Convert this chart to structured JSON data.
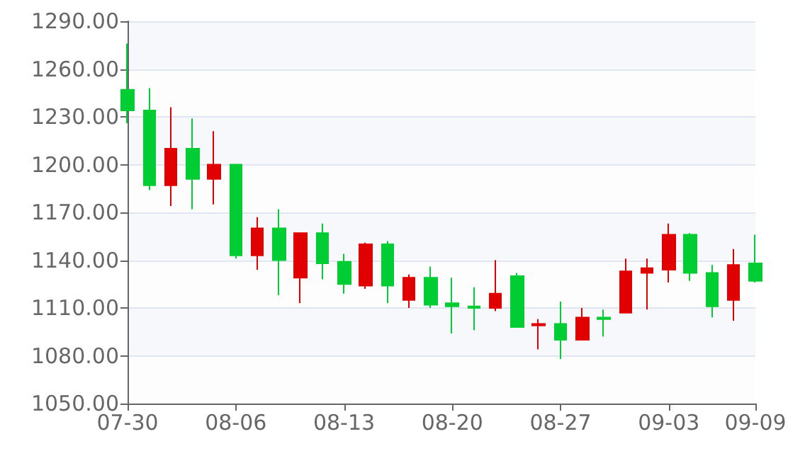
{
  "chart_data": {
    "type": "candlestick",
    "categories": [
      "07-30",
      null,
      null,
      null,
      null,
      "08-06",
      null,
      null,
      null,
      null,
      "08-13",
      null,
      null,
      null,
      null,
      "08-20",
      null,
      null,
      null,
      null,
      "08-27",
      null,
      null,
      null,
      null,
      "09-03",
      null,
      null,
      null,
      "09-09"
    ],
    "ohlc": [
      [
        1247,
        1276,
        1226,
        1234
      ],
      [
        1234,
        1248,
        1184,
        1187
      ],
      [
        1187,
        1236,
        1174,
        1210
      ],
      [
        1210,
        1229,
        1172,
        1191
      ],
      [
        1191,
        1221,
        1175,
        1200
      ],
      [
        1200,
        1200,
        1141,
        1143
      ],
      [
        1143,
        1167,
        1134,
        1160
      ],
      [
        1160,
        1172,
        1118,
        1140
      ],
      [
        1129,
        1157,
        1113,
        1157
      ],
      [
        1157,
        1163,
        1128,
        1138
      ],
      [
        1139,
        1144,
        1119,
        1125
      ],
      [
        1124,
        1151,
        1122,
        1150
      ],
      [
        1150,
        1152,
        1113,
        1124
      ],
      [
        1115,
        1131,
        1110,
        1129
      ],
      [
        1129,
        1136,
        1110,
        1112
      ],
      [
        1113,
        1129,
        1094,
        1111
      ],
      [
        1111,
        1123,
        1096,
        1110
      ],
      [
        1110,
        1140,
        1108,
        1119
      ],
      [
        1130,
        1132,
        1098,
        1098
      ],
      [
        1099,
        1103,
        1084,
        1100
      ],
      [
        1100,
        1114,
        1078,
        1090
      ],
      [
        1090,
        1110,
        1090,
        1104
      ],
      [
        1104,
        1109,
        1092,
        1103
      ],
      [
        1107,
        1141,
        1107,
        1133
      ],
      [
        1132,
        1141,
        1109,
        1135
      ],
      [
        1134,
        1163,
        1126,
        1156
      ],
      [
        1156,
        1157,
        1127,
        1132
      ],
      [
        1132,
        1137,
        1104,
        1111
      ],
      [
        1115,
        1147,
        1102,
        1137
      ],
      [
        1138,
        1156,
        1126,
        1127
      ]
    ],
    "colors": [
      "#00cc33",
      "#00cc33",
      "#e00000",
      "#00cc33",
      "#e00000",
      "#00cc33",
      "#e00000",
      "#00cc33",
      "#e00000",
      "#00cc33",
      "#00cc33",
      "#e00000",
      "#00cc33",
      "#e00000",
      "#00cc33",
      "#00cc33",
      "#00cc33",
      "#e00000",
      "#00cc33",
      "#e00000",
      "#00cc33",
      "#e00000",
      "#00cc33",
      "#e00000",
      "#e00000",
      "#e00000",
      "#00cc33",
      "#00cc33",
      "#e00000",
      "#00cc33"
    ],
    "ylim": [
      1050,
      1290
    ],
    "yticks": [
      {
        "value": 1050,
        "label": "1050.00"
      },
      {
        "value": 1080,
        "label": "1080.00"
      },
      {
        "value": 1110,
        "label": "1110.00"
      },
      {
        "value": 1140,
        "label": "1140.00"
      },
      {
        "value": 1170,
        "label": "1170.00"
      },
      {
        "value": 1200,
        "label": "1200.00"
      },
      {
        "value": 1230,
        "label": "1230.00"
      },
      {
        "value": 1260,
        "label": "1260.00"
      },
      {
        "value": 1290,
        "label": "1290.00"
      }
    ],
    "grid": true
  }
}
